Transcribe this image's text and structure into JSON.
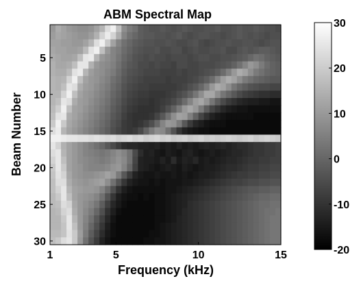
{
  "chart_data": {
    "type": "heatmap",
    "title": "ABM Spectral Map",
    "xlabel": "Frequency (kHz)",
    "ylabel": "Beam Number",
    "xlim": [
      1,
      15
    ],
    "ylim": [
      1,
      30
    ],
    "y_reversed": true,
    "x_ticks": [
      "1",
      "5",
      "10",
      "15"
    ],
    "y_ticks": [
      "5",
      "10",
      "15",
      "20",
      "25",
      "30"
    ],
    "colorbar": {
      "range": [
        -20,
        30
      ],
      "ticks": [
        "30",
        "20",
        "10",
        "0",
        "-10",
        "-20"
      ],
      "colormap": "gray"
    },
    "grid": false,
    "rows": 30,
    "cols": 42,
    "description_of_values": "Intensity in dB per beam (rows) and frequency bin (columns); bright arc descending from ~4 kHz at beam 1 to ~1.5 kHz at beam 30, dark region above ~6 kHz for beams 15-30, bright band near beam 16, bright arc from ~9 kHz at beam 15 to ~14 kHz at beam 7",
    "values_estimated": [
      [
        10,
        14,
        12,
        10,
        9,
        8,
        8,
        9,
        12,
        16,
        24,
        28,
        18,
        8,
        4,
        2,
        -2,
        -3,
        -4,
        -4,
        -3,
        -4,
        -5,
        -4,
        -3,
        -4,
        -5,
        -5,
        -4,
        -4,
        -3,
        -5,
        -5,
        -4,
        -3,
        -4,
        -4,
        -3,
        -4,
        -5,
        -5,
        -6
      ],
      [
        11,
        13,
        12,
        11,
        10,
        9,
        9,
        11,
        15,
        22,
        27,
        22,
        14,
        6,
        2,
        0,
        -2,
        -3,
        -3,
        -4,
        -4,
        -5,
        -4,
        -3,
        -5,
        -6,
        -5,
        -4,
        -4,
        -5,
        -5,
        -6,
        -5,
        -4,
        -3,
        -4,
        -5,
        -4,
        -5,
        -6,
        -5,
        -5
      ],
      [
        12,
        12,
        11,
        11,
        10,
        10,
        12,
        16,
        24,
        28,
        20,
        12,
        6,
        2,
        0,
        -2,
        -3,
        -4,
        -4,
        -5,
        -5,
        -4,
        -5,
        -6,
        -6,
        -5,
        -4,
        -6,
        -7,
        -6,
        -5,
        -5,
        -4,
        -5,
        -5,
        -4,
        -4,
        -5,
        -6,
        -5,
        -4,
        -4
      ],
      [
        13,
        12,
        12,
        11,
        11,
        12,
        17,
        25,
        28,
        18,
        10,
        6,
        4,
        1,
        -1,
        -3,
        -4,
        -5,
        -5,
        -4,
        -6,
        -6,
        -5,
        -5,
        -7,
        -6,
        -5,
        -6,
        -6,
        -5,
        -5,
        -4,
        -6,
        -6,
        -4,
        -3,
        -4,
        -3,
        -2,
        -2,
        -3,
        -4
      ],
      [
        14,
        13,
        12,
        12,
        13,
        18,
        26,
        27,
        16,
        10,
        8,
        6,
        3,
        0,
        -2,
        -4,
        -5,
        -6,
        -5,
        -6,
        -6,
        -7,
        -6,
        -6,
        -6,
        -7,
        -6,
        -5,
        -5,
        -6,
        -6,
        -5,
        -5,
        -4,
        -3,
        -2,
        0,
        2,
        1,
        -1,
        -2,
        -3
      ],
      [
        15,
        13,
        13,
        14,
        18,
        26,
        26,
        15,
        10,
        8,
        7,
        5,
        2,
        -1,
        -3,
        -4,
        -6,
        -6,
        -7,
        -6,
        -7,
        -7,
        -8,
        -6,
        -6,
        -7,
        -7,
        -6,
        -6,
        -6,
        -5,
        -4,
        -3,
        -1,
        2,
        6,
        10,
        8,
        4,
        1,
        -1,
        -2
      ],
      [
        15,
        14,
        14,
        17,
        25,
        27,
        16,
        11,
        9,
        8,
        6,
        4,
        1,
        -2,
        -4,
        -5,
        -6,
        -7,
        -7,
        -7,
        -8,
        -8,
        -8,
        -7,
        -8,
        -7,
        -7,
        -6,
        -5,
        -4,
        -2,
        1,
        5,
        10,
        14,
        12,
        8,
        4,
        2,
        0,
        -1,
        -2
      ],
      [
        16,
        15,
        16,
        22,
        28,
        18,
        12,
        10,
        9,
        7,
        5,
        2,
        0,
        -3,
        -5,
        -6,
        -7,
        -8,
        -8,
        -8,
        -8,
        -9,
        -8,
        -8,
        -8,
        -7,
        -6,
        -4,
        -2,
        1,
        6,
        11,
        14,
        12,
        8,
        4,
        2,
        0,
        -1,
        -2,
        -3,
        -3
      ],
      [
        16,
        15,
        18,
        26,
        24,
        14,
        11,
        10,
        8,
        6,
        4,
        1,
        -1,
        -4,
        -6,
        -7,
        -8,
        -8,
        -9,
        -9,
        -9,
        -9,
        -9,
        -8,
        -7,
        -5,
        -3,
        0,
        4,
        10,
        14,
        12,
        8,
        3,
        0,
        -2,
        -4,
        -5,
        -6,
        -6,
        -7,
        -7
      ],
      [
        16,
        16,
        22,
        28,
        18,
        12,
        10,
        9,
        7,
        5,
        3,
        0,
        -2,
        -5,
        -7,
        -8,
        -9,
        -9,
        -10,
        -10,
        -10,
        -9,
        -8,
        -6,
        -4,
        -1,
        3,
        8,
        13,
        13,
        8,
        3,
        0,
        -3,
        -6,
        -8,
        -9,
        -10,
        -11,
        -11,
        -12,
        -12
      ],
      [
        16,
        18,
        26,
        24,
        14,
        11,
        10,
        8,
        6,
        4,
        2,
        -1,
        -3,
        -6,
        -8,
        -9,
        -10,
        -10,
        -11,
        -10,
        -9,
        -8,
        -6,
        -3,
        1,
        6,
        11,
        13,
        9,
        3,
        -2,
        -6,
        -9,
        -11,
        -13,
        -14,
        -15,
        -15,
        -16,
        -16,
        -17,
        -17
      ],
      [
        17,
        21,
        28,
        18,
        12,
        11,
        9,
        7,
        5,
        3,
        1,
        -2,
        -4,
        -7,
        -9,
        -10,
        -11,
        -11,
        -11,
        -10,
        -8,
        -5,
        -1,
        4,
        10,
        13,
        10,
        4,
        -2,
        -7,
        -10,
        -13,
        -15,
        -16,
        -17,
        -17,
        -18,
        -18,
        -18,
        -18,
        -18,
        -18
      ],
      [
        18,
        25,
        26,
        14,
        12,
        10,
        8,
        6,
        4,
        2,
        0,
        -3,
        -5,
        -8,
        -10,
        -11,
        -11,
        -11,
        -10,
        -7,
        -3,
        2,
        8,
        12,
        11,
        5,
        -1,
        -7,
        -11,
        -14,
        -16,
        -17,
        -18,
        -18,
        -18,
        -18,
        -18,
        -19,
        -19,
        -19,
        -19,
        -19
      ],
      [
        20,
        28,
        20,
        13,
        11,
        9,
        7,
        5,
        3,
        1,
        -1,
        -4,
        -6,
        -9,
        -10,
        -11,
        -10,
        -8,
        -5,
        0,
        6,
        10,
        9,
        4,
        -3,
        -9,
        -13,
        -15,
        -17,
        -18,
        -18,
        -18,
        -19,
        -19,
        -19,
        -19,
        -19,
        -19,
        -19,
        -19,
        -19,
        -19
      ],
      [
        24,
        27,
        16,
        12,
        10,
        8,
        6,
        4,
        2,
        0,
        -2,
        -5,
        -7,
        -9,
        -10,
        -9,
        -6,
        -1,
        4,
        8,
        7,
        2,
        -4,
        -10,
        -14,
        -16,
        -17,
        -18,
        -18,
        -19,
        -19,
        -19,
        -19,
        -19,
        -19,
        -19,
        -19,
        -19,
        -19,
        -19,
        -19,
        -19
      ],
      [
        28,
        28,
        27,
        26,
        26,
        25,
        25,
        24,
        25,
        24,
        23,
        24,
        22,
        23,
        24,
        22,
        23,
        21,
        22,
        23,
        21,
        22,
        20,
        21,
        22,
        20,
        21,
        22,
        20,
        21,
        20,
        21,
        22,
        21,
        20,
        21,
        22,
        20,
        21,
        22,
        21,
        20
      ],
      [
        26,
        22,
        15,
        12,
        10,
        8,
        6,
        4,
        2,
        0,
        -3,
        -6,
        -9,
        -12,
        -13,
        -13,
        -14,
        -14,
        -15,
        -14,
        -16,
        -15,
        -16,
        -14,
        -16,
        -15,
        -16,
        -15,
        -14,
        -15,
        -14,
        -13,
        -14,
        -13,
        -12,
        -12,
        -11,
        -10,
        -10,
        -9,
        -9,
        -8
      ],
      [
        24,
        26,
        16,
        12,
        10,
        8,
        6,
        5,
        4,
        3,
        4,
        6,
        8,
        6,
        2,
        -6,
        -12,
        -15,
        -14,
        -16,
        -17,
        -15,
        -16,
        -17,
        -15,
        -14,
        -16,
        -17,
        -16,
        -15,
        -16,
        -15,
        -14,
        -13,
        -13,
        -12,
        -11,
        -10,
        -10,
        -9,
        -9,
        -8
      ],
      [
        22,
        26,
        18,
        12,
        10,
        8,
        7,
        6,
        5,
        4,
        5,
        7,
        9,
        7,
        2,
        -7,
        -14,
        -15,
        -15,
        -16,
        -14,
        -16,
        -12,
        -16,
        -14,
        -15,
        -13,
        -16,
        -15,
        -16,
        -15,
        -14,
        -13,
        -13,
        -12,
        -11,
        -10,
        -10,
        -9,
        -9,
        -8,
        -8
      ],
      [
        20,
        26,
        20,
        12,
        10,
        9,
        7,
        6,
        6,
        6,
        7,
        9,
        10,
        6,
        0,
        -8,
        -14,
        -15,
        -16,
        -17,
        -16,
        -15,
        -16,
        -17,
        -15,
        -16,
        -17,
        -16,
        -15,
        -15,
        -14,
        -13,
        -12,
        -12,
        -11,
        -10,
        -9,
        -9,
        -8,
        -8,
        -7,
        -7
      ],
      [
        19,
        25,
        22,
        13,
        10,
        9,
        8,
        8,
        9,
        10,
        12,
        10,
        4,
        -3,
        -9,
        -14,
        -16,
        -17,
        -17,
        -16,
        -17,
        -17,
        -16,
        -17,
        -16,
        -17,
        -16,
        -15,
        -15,
        -14,
        -13,
        -12,
        -11,
        -10,
        -9,
        -9,
        -8,
        -8,
        -7,
        -7,
        -6,
        -6
      ],
      [
        18,
        24,
        24,
        14,
        11,
        10,
        9,
        10,
        11,
        12,
        8,
        2,
        -4,
        -10,
        -14,
        -16,
        -17,
        -17,
        -18,
        -17,
        -18,
        -17,
        -17,
        -17,
        -16,
        -16,
        -15,
        -14,
        -13,
        -12,
        -11,
        -10,
        -9,
        -8,
        -8,
        -7,
        -6,
        -6,
        -5,
        -5,
        -4,
        -4
      ],
      [
        18,
        22,
        26,
        16,
        12,
        11,
        10,
        10,
        9,
        6,
        1,
        -5,
        -11,
        -15,
        -17,
        -18,
        -18,
        -18,
        -18,
        -18,
        -18,
        -17,
        -17,
        -16,
        -15,
        -14,
        -13,
        -12,
        -11,
        -10,
        -9,
        -8,
        -7,
        -6,
        -5,
        -4,
        -3,
        -3,
        -2,
        -2,
        -1,
        -1
      ],
      [
        17,
        20,
        26,
        18,
        12,
        10,
        9,
        8,
        6,
        2,
        -4,
        -10,
        -15,
        -17,
        -18,
        -18,
        -19,
        -18,
        -19,
        -18,
        -18,
        -17,
        -16,
        -15,
        -14,
        -13,
        -12,
        -11,
        -10,
        -9,
        -8,
        -7,
        -6,
        -5,
        -4,
        -3,
        -2,
        -1,
        0,
        0,
        1,
        1
      ],
      [
        17,
        18,
        24,
        22,
        13,
        10,
        8,
        6,
        3,
        -2,
        -8,
        -13,
        -16,
        -18,
        -19,
        -19,
        -19,
        -19,
        -19,
        -18,
        -18,
        -17,
        -16,
        -15,
        -14,
        -12,
        -11,
        -10,
        -9,
        -8,
        -7,
        -6,
        -5,
        -4,
        -3,
        -2,
        -1,
        0,
        1,
        1,
        2,
        2
      ],
      [
        16,
        17,
        22,
        24,
        14,
        10,
        7,
        4,
        0,
        -5,
        -11,
        -15,
        -18,
        -19,
        -19,
        -19,
        -19,
        -19,
        -19,
        -18,
        -18,
        -17,
        -16,
        -15,
        -13,
        -12,
        -11,
        -10,
        -9,
        -8,
        -7,
        -6,
        -5,
        -4,
        -3,
        -2,
        -1,
        0,
        1,
        2,
        2,
        3
      ],
      [
        16,
        16,
        20,
        26,
        16,
        10,
        6,
        2,
        -3,
        -8,
        -13,
        -17,
        -19,
        -19,
        -19,
        -19,
        -19,
        -19,
        -19,
        -18,
        -18,
        -17,
        -16,
        -14,
        -13,
        -12,
        -11,
        -10,
        -9,
        -8,
        -7,
        -6,
        -5,
        -4,
        -3,
        -2,
        -1,
        0,
        1,
        2,
        3,
        3
      ],
      [
        16,
        16,
        19,
        26,
        18,
        10,
        5,
        0,
        -5,
        -10,
        -15,
        -18,
        -19,
        -19,
        -19,
        -19,
        -19,
        -19,
        -19,
        -18,
        -17,
        -16,
        -15,
        -14,
        -13,
        -12,
        -11,
        -10,
        -9,
        -8,
        -7,
        -6,
        -5,
        -4,
        -3,
        -2,
        -1,
        0,
        1,
        2,
        3,
        3
      ],
      [
        17,
        17,
        19,
        25,
        20,
        11,
        4,
        -2,
        -7,
        -12,
        -16,
        -18,
        -19,
        -19,
        -19,
        -19,
        -19,
        -19,
        -18,
        -18,
        -17,
        -16,
        -15,
        -14,
        -13,
        -12,
        -11,
        -10,
        -9,
        -8,
        -7,
        -6,
        -5,
        -4,
        -3,
        -2,
        -1,
        0,
        1,
        2,
        3,
        3
      ],
      [
        18,
        20,
        24,
        26,
        20,
        10,
        2,
        -4,
        -9,
        -14,
        -17,
        -19,
        -19,
        -19,
        -19,
        -19,
        -19,
        -18,
        -18,
        -17,
        -17,
        -16,
        -15,
        -14,
        -13,
        -12,
        -11,
        -10,
        -9,
        -8,
        -7,
        -6,
        -5,
        -4,
        -3,
        -2,
        -1,
        0,
        1,
        2,
        3,
        3
      ]
    ]
  }
}
